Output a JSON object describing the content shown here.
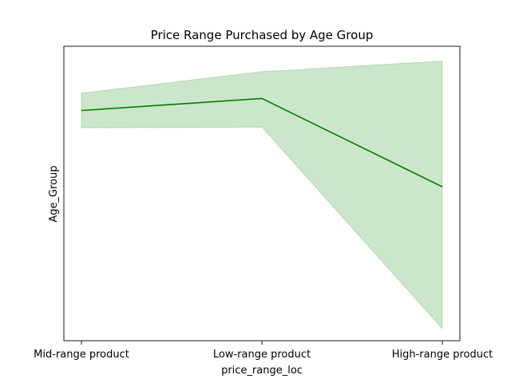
{
  "chart_data": {
    "type": "line",
    "title": "Price Range Purchased by Age Group",
    "xlabel": "price_range_loc",
    "ylabel": "Age_Group",
    "categories": [
      "Mid-range product",
      "Low-range product",
      "High-range product"
    ],
    "series": [
      {
        "values": [
          0.81,
          0.855,
          0.525
        ],
        "ci_lower": [
          0.745,
          0.748,
          -0.005
        ],
        "ci_upper": [
          0.875,
          0.955,
          0.995
        ],
        "color": "#008000",
        "band_color": "#008000",
        "band_opacity": 0.2
      }
    ],
    "ylim": [
      -0.05,
      1.05
    ],
    "ytick_labels": false,
    "grid": false,
    "legend": false
  }
}
